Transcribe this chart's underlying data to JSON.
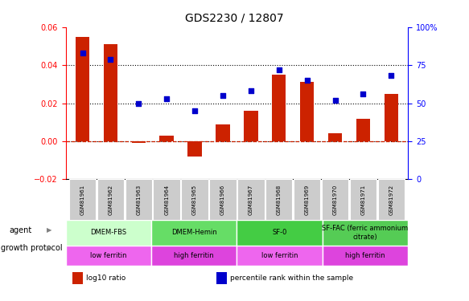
{
  "title": "GDS2230 / 12807",
  "samples": [
    "GSM81961",
    "GSM81962",
    "GSM81963",
    "GSM81964",
    "GSM81965",
    "GSM81966",
    "GSM81967",
    "GSM81968",
    "GSM81969",
    "GSM81970",
    "GSM81971",
    "GSM81972"
  ],
  "log10_ratio": [
    0.055,
    0.051,
    -0.001,
    0.003,
    -0.008,
    0.009,
    0.016,
    0.035,
    0.031,
    0.004,
    0.012,
    0.025
  ],
  "percentile_rank": [
    83,
    79,
    50,
    53,
    45,
    55,
    58,
    72,
    65,
    52,
    56,
    68
  ],
  "ylim_left": [
    -0.02,
    0.06
  ],
  "ylim_right": [
    0,
    100
  ],
  "yticks_left": [
    -0.02,
    0.0,
    0.02,
    0.04,
    0.06
  ],
  "yticks_right": [
    0,
    25,
    50,
    75,
    100
  ],
  "hlines": [
    0.0,
    0.02,
    0.04
  ],
  "bar_color": "#cc2200",
  "dot_color": "#0000cc",
  "zero_line_color": "#cc2200",
  "agent_groups": [
    {
      "label": "DMEM-FBS",
      "start": 0,
      "end": 3,
      "color": "#ccffcc"
    },
    {
      "label": "DMEM-Hemin",
      "start": 3,
      "end": 6,
      "color": "#66dd66"
    },
    {
      "label": "SF-0",
      "start": 6,
      "end": 9,
      "color": "#44cc44"
    },
    {
      "label": "SF-FAC (ferric ammonium\ncitrate)",
      "start": 9,
      "end": 12,
      "color": "#55cc55"
    }
  ],
  "protocol_groups": [
    {
      "label": "low ferritin",
      "start": 0,
      "end": 3,
      "color": "#ee66ee"
    },
    {
      "label": "high ferritin",
      "start": 3,
      "end": 6,
      "color": "#dd44dd"
    },
    {
      "label": "low ferritin",
      "start": 6,
      "end": 9,
      "color": "#ee66ee"
    },
    {
      "label": "high ferritin",
      "start": 9,
      "end": 12,
      "color": "#dd44dd"
    }
  ],
  "legend_items": [
    {
      "label": "log10 ratio",
      "color": "#cc2200"
    },
    {
      "label": "percentile rank within the sample",
      "color": "#0000cc"
    }
  ],
  "tick_bg_color": "#cccccc",
  "agent_label": "agent",
  "protocol_label": "growth protocol"
}
